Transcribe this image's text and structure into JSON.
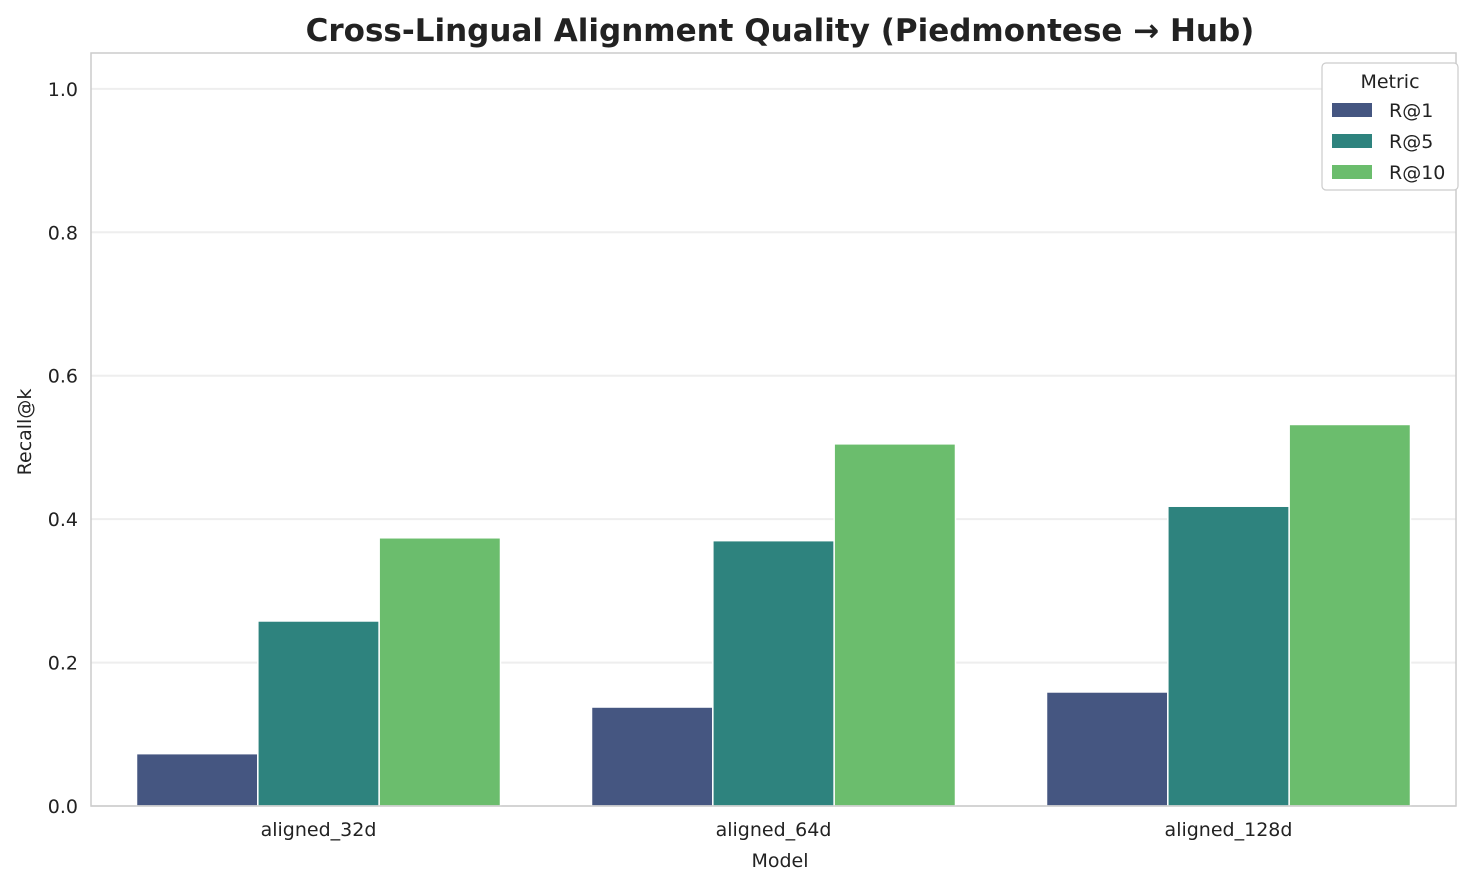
{
  "chart_data": {
    "type": "bar",
    "title": "Cross-Lingual Alignment Quality (Piedmontese → Hub)",
    "xlabel": "Model",
    "ylabel": "Recall@k",
    "categories": [
      "aligned_32d",
      "aligned_64d",
      "aligned_128d"
    ],
    "series": [
      {
        "name": "R@1",
        "color": "#455681",
        "values": [
          0.073,
          0.138,
          0.159
        ]
      },
      {
        "name": "R@5",
        "color": "#2e837e",
        "values": [
          0.258,
          0.37,
          0.418
        ]
      },
      {
        "name": "R@10",
        "color": "#6bbd6d",
        "values": [
          0.374,
          0.505,
          0.532
        ]
      }
    ],
    "ylim": [
      0,
      1.05
    ],
    "yticks": [
      "0.0",
      "0.2",
      "0.4",
      "0.6",
      "0.8",
      "1.0"
    ],
    "grid": true,
    "legend": {
      "title": "Metric",
      "placement": "top-right"
    }
  }
}
